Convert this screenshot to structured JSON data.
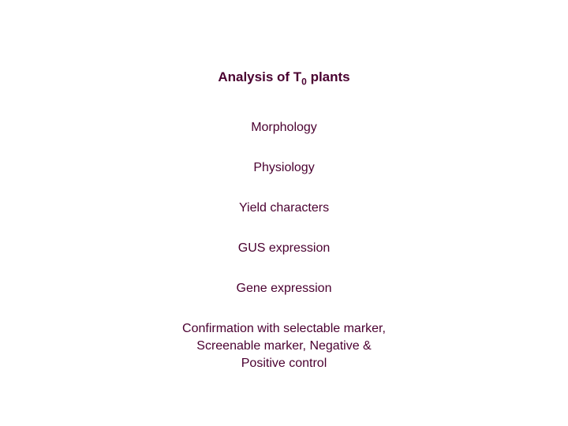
{
  "slide": {
    "title_pre": "Analysis of T",
    "title_sub": "0",
    "title_post": " plants",
    "title_color": "#4a0030",
    "title_fontsize": 17,
    "title_fontweight": "bold",
    "items": [
      "Morphology",
      "Physiology",
      "Yield characters",
      "GUS expression",
      "Gene expression"
    ],
    "confirmation_line1": "Confirmation with selectable marker,",
    "confirmation_line2": "Screenable marker, Negative &",
    "confirmation_line3": "Positive control",
    "item_color": "#4a0030",
    "item_fontsize": 16,
    "background_color": "#ffffff"
  }
}
